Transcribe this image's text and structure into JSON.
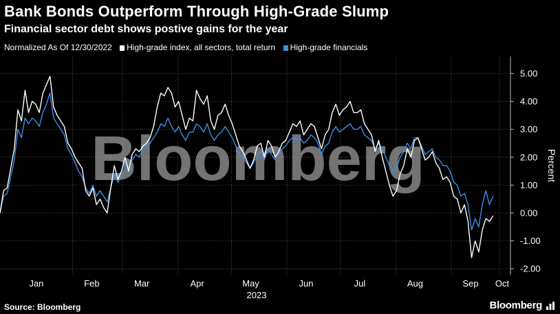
{
  "title": "Bank Bonds Outperform Through High-Grade Slump",
  "subtitle": "Financial sector debt shows postive gains for the year",
  "legend": {
    "prefix": "Normalized As Of 12/30/2022",
    "items": [
      {
        "label": "High-grade index, all sectors, total return",
        "color": "#ffffff"
      },
      {
        "label": "High-grade financials",
        "color": "#3d8fe6"
      }
    ]
  },
  "source": "Source: Bloomberg",
  "brand": "Bloomberg",
  "watermark": "Bloomberg",
  "chart_data": {
    "type": "line",
    "ylabel": "Percent",
    "xlabel": "2023",
    "ylim": [
      -2.4,
      5.5
    ],
    "yticks": [
      5,
      4,
      3,
      2,
      1,
      0,
      -1,
      -2
    ],
    "ytick_labels": [
      "5.00",
      "4.00",
      "3.00",
      "2.00",
      "1.00",
      "0.00",
      "-1.00",
      "-2.00"
    ],
    "xlim": [
      0,
      285
    ],
    "xticks": [
      {
        "label": "Jan",
        "x": 15
      },
      {
        "label": "Feb",
        "x": 46
      },
      {
        "label": "Mar",
        "x": 74
      },
      {
        "label": "Apr",
        "x": 105
      },
      {
        "label": "May",
        "x": 135
      },
      {
        "label": "Jun",
        "x": 166
      },
      {
        "label": "Jul",
        "x": 196
      },
      {
        "label": "Aug",
        "x": 227
      },
      {
        "label": "Sep",
        "x": 258
      },
      {
        "label": "Oct",
        "x": 285
      }
    ],
    "grid": true,
    "series": [
      {
        "name": "High-grade index, all sectors, total return",
        "color": "#ffffff",
        "points": [
          [
            0,
            0.0
          ],
          [
            2,
            0.8
          ],
          [
            4,
            0.9
          ],
          [
            6,
            1.6
          ],
          [
            8,
            2.3
          ],
          [
            10,
            3.7
          ],
          [
            12,
            3.3
          ],
          [
            14,
            4.4
          ],
          [
            16,
            3.6
          ],
          [
            18,
            4.0
          ],
          [
            20,
            3.9
          ],
          [
            22,
            3.6
          ],
          [
            24,
            4.3
          ],
          [
            26,
            4.6
          ],
          [
            28,
            4.9
          ],
          [
            30,
            3.8
          ],
          [
            32,
            3.5
          ],
          [
            34,
            3.3
          ],
          [
            36,
            3.1
          ],
          [
            38,
            2.5
          ],
          [
            40,
            2.3
          ],
          [
            42,
            2.0
          ],
          [
            44,
            1.8
          ],
          [
            46,
            1.6
          ],
          [
            48,
            0.8
          ],
          [
            50,
            0.6
          ],
          [
            52,
            0.9
          ],
          [
            54,
            0.3
          ],
          [
            56,
            0.5
          ],
          [
            58,
            0.2
          ],
          [
            60,
            0.0
          ],
          [
            62,
            0.9
          ],
          [
            64,
            1.7
          ],
          [
            66,
            1.2
          ],
          [
            68,
            1.5
          ],
          [
            70,
            2.0
          ],
          [
            72,
            1.5
          ],
          [
            74,
            2.1
          ],
          [
            76,
            2.3
          ],
          [
            78,
            2.2
          ],
          [
            80,
            2.4
          ],
          [
            82,
            2.5
          ],
          [
            84,
            2.7
          ],
          [
            86,
            3.1
          ],
          [
            88,
            3.8
          ],
          [
            90,
            4.3
          ],
          [
            92,
            4.2
          ],
          [
            94,
            4.5
          ],
          [
            96,
            4.3
          ],
          [
            98,
            3.8
          ],
          [
            100,
            4.0
          ],
          [
            102,
            3.5
          ],
          [
            104,
            3.0
          ],
          [
            106,
            3.4
          ],
          [
            108,
            3.3
          ],
          [
            110,
            4.4
          ],
          [
            112,
            4.1
          ],
          [
            114,
            3.9
          ],
          [
            116,
            4.2
          ],
          [
            118,
            3.3
          ],
          [
            120,
            3.0
          ],
          [
            122,
            3.5
          ],
          [
            124,
            3.6
          ],
          [
            126,
            3.9
          ],
          [
            128,
            3.5
          ],
          [
            130,
            3.2
          ],
          [
            132,
            2.8
          ],
          [
            134,
            2.4
          ],
          [
            136,
            2.2
          ],
          [
            138,
            1.9
          ],
          [
            140,
            1.6
          ],
          [
            142,
            1.9
          ],
          [
            144,
            2.4
          ],
          [
            146,
            2.5
          ],
          [
            148,
            2.0
          ],
          [
            150,
            2.6
          ],
          [
            152,
            2.4
          ],
          [
            154,
            2.0
          ],
          [
            156,
            2.2
          ],
          [
            158,
            2.5
          ],
          [
            160,
            2.6
          ],
          [
            162,
            2.9
          ],
          [
            164,
            3.2
          ],
          [
            166,
            3.1
          ],
          [
            168,
            3.3
          ],
          [
            170,
            2.8
          ],
          [
            172,
            3.0
          ],
          [
            174,
            3.2
          ],
          [
            176,
            3.1
          ],
          [
            178,
            2.7
          ],
          [
            180,
            2.3
          ],
          [
            182,
            2.8
          ],
          [
            184,
            3.0
          ],
          [
            186,
            3.6
          ],
          [
            188,
            3.9
          ],
          [
            190,
            3.5
          ],
          [
            192,
            3.7
          ],
          [
            194,
            3.8
          ],
          [
            196,
            4.0
          ],
          [
            198,
            3.6
          ],
          [
            200,
            3.6
          ],
          [
            202,
            3.7
          ],
          [
            204,
            3.2
          ],
          [
            206,
            3.0
          ],
          [
            208,
            2.8
          ],
          [
            210,
            2.2
          ],
          [
            212,
            2.6
          ],
          [
            214,
            2.0
          ],
          [
            216,
            1.5
          ],
          [
            218,
            1.0
          ],
          [
            220,
            0.6
          ],
          [
            222,
            0.8
          ],
          [
            224,
            1.4
          ],
          [
            226,
            1.7
          ],
          [
            228,
            2.3
          ],
          [
            230,
            2.0
          ],
          [
            232,
            2.6
          ],
          [
            234,
            2.7
          ],
          [
            236,
            2.3
          ],
          [
            238,
            1.9
          ],
          [
            240,
            2.0
          ],
          [
            242,
            2.2
          ],
          [
            244,
            1.8
          ],
          [
            246,
            1.6
          ],
          [
            248,
            1.2
          ],
          [
            250,
            1.3
          ],
          [
            252,
            1.1
          ],
          [
            254,
            0.6
          ],
          [
            256,
            0.5
          ],
          [
            258,
            0.0
          ],
          [
            260,
            0.3
          ],
          [
            262,
            -0.3
          ],
          [
            264,
            -1.6
          ],
          [
            266,
            -1.0
          ],
          [
            268,
            -1.4
          ],
          [
            270,
            -0.6
          ],
          [
            272,
            -0.2
          ],
          [
            274,
            -0.3
          ],
          [
            276,
            -0.1
          ]
        ]
      },
      {
        "name": "High-grade financials",
        "color": "#3d8fe6",
        "points": [
          [
            0,
            0.0
          ],
          [
            2,
            0.6
          ],
          [
            4,
            0.7
          ],
          [
            6,
            1.3
          ],
          [
            8,
            1.9
          ],
          [
            10,
            3.0
          ],
          [
            12,
            2.7
          ],
          [
            14,
            3.4
          ],
          [
            16,
            3.2
          ],
          [
            18,
            3.4
          ],
          [
            20,
            3.3
          ],
          [
            22,
            3.1
          ],
          [
            24,
            3.6
          ],
          [
            26,
            3.9
          ],
          [
            28,
            4.3
          ],
          [
            30,
            3.4
          ],
          [
            32,
            3.2
          ],
          [
            34,
            3.0
          ],
          [
            36,
            2.8
          ],
          [
            38,
            2.3
          ],
          [
            40,
            2.1
          ],
          [
            42,
            1.8
          ],
          [
            44,
            1.5
          ],
          [
            46,
            1.3
          ],
          [
            48,
            0.9
          ],
          [
            50,
            0.7
          ],
          [
            52,
            1.0
          ],
          [
            54,
            0.6
          ],
          [
            56,
            0.8
          ],
          [
            58,
            0.6
          ],
          [
            60,
            0.4
          ],
          [
            62,
            0.9
          ],
          [
            64,
            1.4
          ],
          [
            66,
            1.1
          ],
          [
            68,
            1.3
          ],
          [
            70,
            1.8
          ],
          [
            72,
            1.6
          ],
          [
            74,
            1.9
          ],
          [
            76,
            2.1
          ],
          [
            78,
            2.0
          ],
          [
            80,
            2.3
          ],
          [
            82,
            2.4
          ],
          [
            84,
            2.5
          ],
          [
            86,
            2.7
          ],
          [
            88,
            2.9
          ],
          [
            90,
            3.2
          ],
          [
            92,
            3.1
          ],
          [
            94,
            3.4
          ],
          [
            96,
            3.1
          ],
          [
            98,
            2.9
          ],
          [
            100,
            3.1
          ],
          [
            102,
            2.8
          ],
          [
            104,
            2.6
          ],
          [
            106,
            2.9
          ],
          [
            108,
            2.9
          ],
          [
            110,
            3.2
          ],
          [
            112,
            3.1
          ],
          [
            114,
            2.9
          ],
          [
            116,
            3.2
          ],
          [
            118,
            2.8
          ],
          [
            120,
            2.6
          ],
          [
            122,
            2.8
          ],
          [
            124,
            2.9
          ],
          [
            126,
            3.1
          ],
          [
            128,
            2.9
          ],
          [
            130,
            2.7
          ],
          [
            132,
            2.4
          ],
          [
            134,
            2.1
          ],
          [
            136,
            2.0
          ],
          [
            138,
            1.8
          ],
          [
            140,
            1.6
          ],
          [
            142,
            1.8
          ],
          [
            144,
            2.1
          ],
          [
            146,
            2.2
          ],
          [
            148,
            1.9
          ],
          [
            150,
            2.3
          ],
          [
            152,
            2.1
          ],
          [
            154,
            1.9
          ],
          [
            156,
            2.1
          ],
          [
            158,
            2.3
          ],
          [
            160,
            2.4
          ],
          [
            162,
            2.6
          ],
          [
            164,
            2.7
          ],
          [
            166,
            2.6
          ],
          [
            168,
            2.7
          ],
          [
            170,
            2.5
          ],
          [
            172,
            2.6
          ],
          [
            174,
            2.8
          ],
          [
            176,
            2.7
          ],
          [
            178,
            2.5
          ],
          [
            180,
            2.1
          ],
          [
            182,
            2.4
          ],
          [
            184,
            2.5
          ],
          [
            186,
            2.9
          ],
          [
            188,
            3.1
          ],
          [
            190,
            2.9
          ],
          [
            192,
            3.0
          ],
          [
            194,
            3.1
          ],
          [
            196,
            3.2
          ],
          [
            198,
            3.0
          ],
          [
            200,
            3.0
          ],
          [
            202,
            3.1
          ],
          [
            204,
            2.8
          ],
          [
            206,
            2.7
          ],
          [
            208,
            2.6
          ],
          [
            210,
            2.3
          ],
          [
            212,
            2.5
          ],
          [
            214,
            2.3
          ],
          [
            216,
            2.0
          ],
          [
            218,
            1.7
          ],
          [
            220,
            1.5
          ],
          [
            222,
            1.6
          ],
          [
            224,
            2.0
          ],
          [
            226,
            2.2
          ],
          [
            228,
            2.5
          ],
          [
            230,
            2.3
          ],
          [
            232,
            2.7
          ],
          [
            234,
            2.7
          ],
          [
            236,
            2.4
          ],
          [
            238,
            2.1
          ],
          [
            240,
            2.2
          ],
          [
            242,
            2.3
          ],
          [
            244,
            2.0
          ],
          [
            246,
            1.9
          ],
          [
            248,
            1.7
          ],
          [
            250,
            1.7
          ],
          [
            252,
            1.5
          ],
          [
            254,
            1.1
          ],
          [
            256,
            1.0
          ],
          [
            258,
            0.6
          ],
          [
            260,
            0.7
          ],
          [
            262,
            0.3
          ],
          [
            264,
            -0.6
          ],
          [
            266,
            -0.2
          ],
          [
            268,
            -0.5
          ],
          [
            270,
            0.3
          ],
          [
            272,
            0.8
          ],
          [
            274,
            0.3
          ],
          [
            276,
            0.6
          ]
        ]
      }
    ]
  }
}
